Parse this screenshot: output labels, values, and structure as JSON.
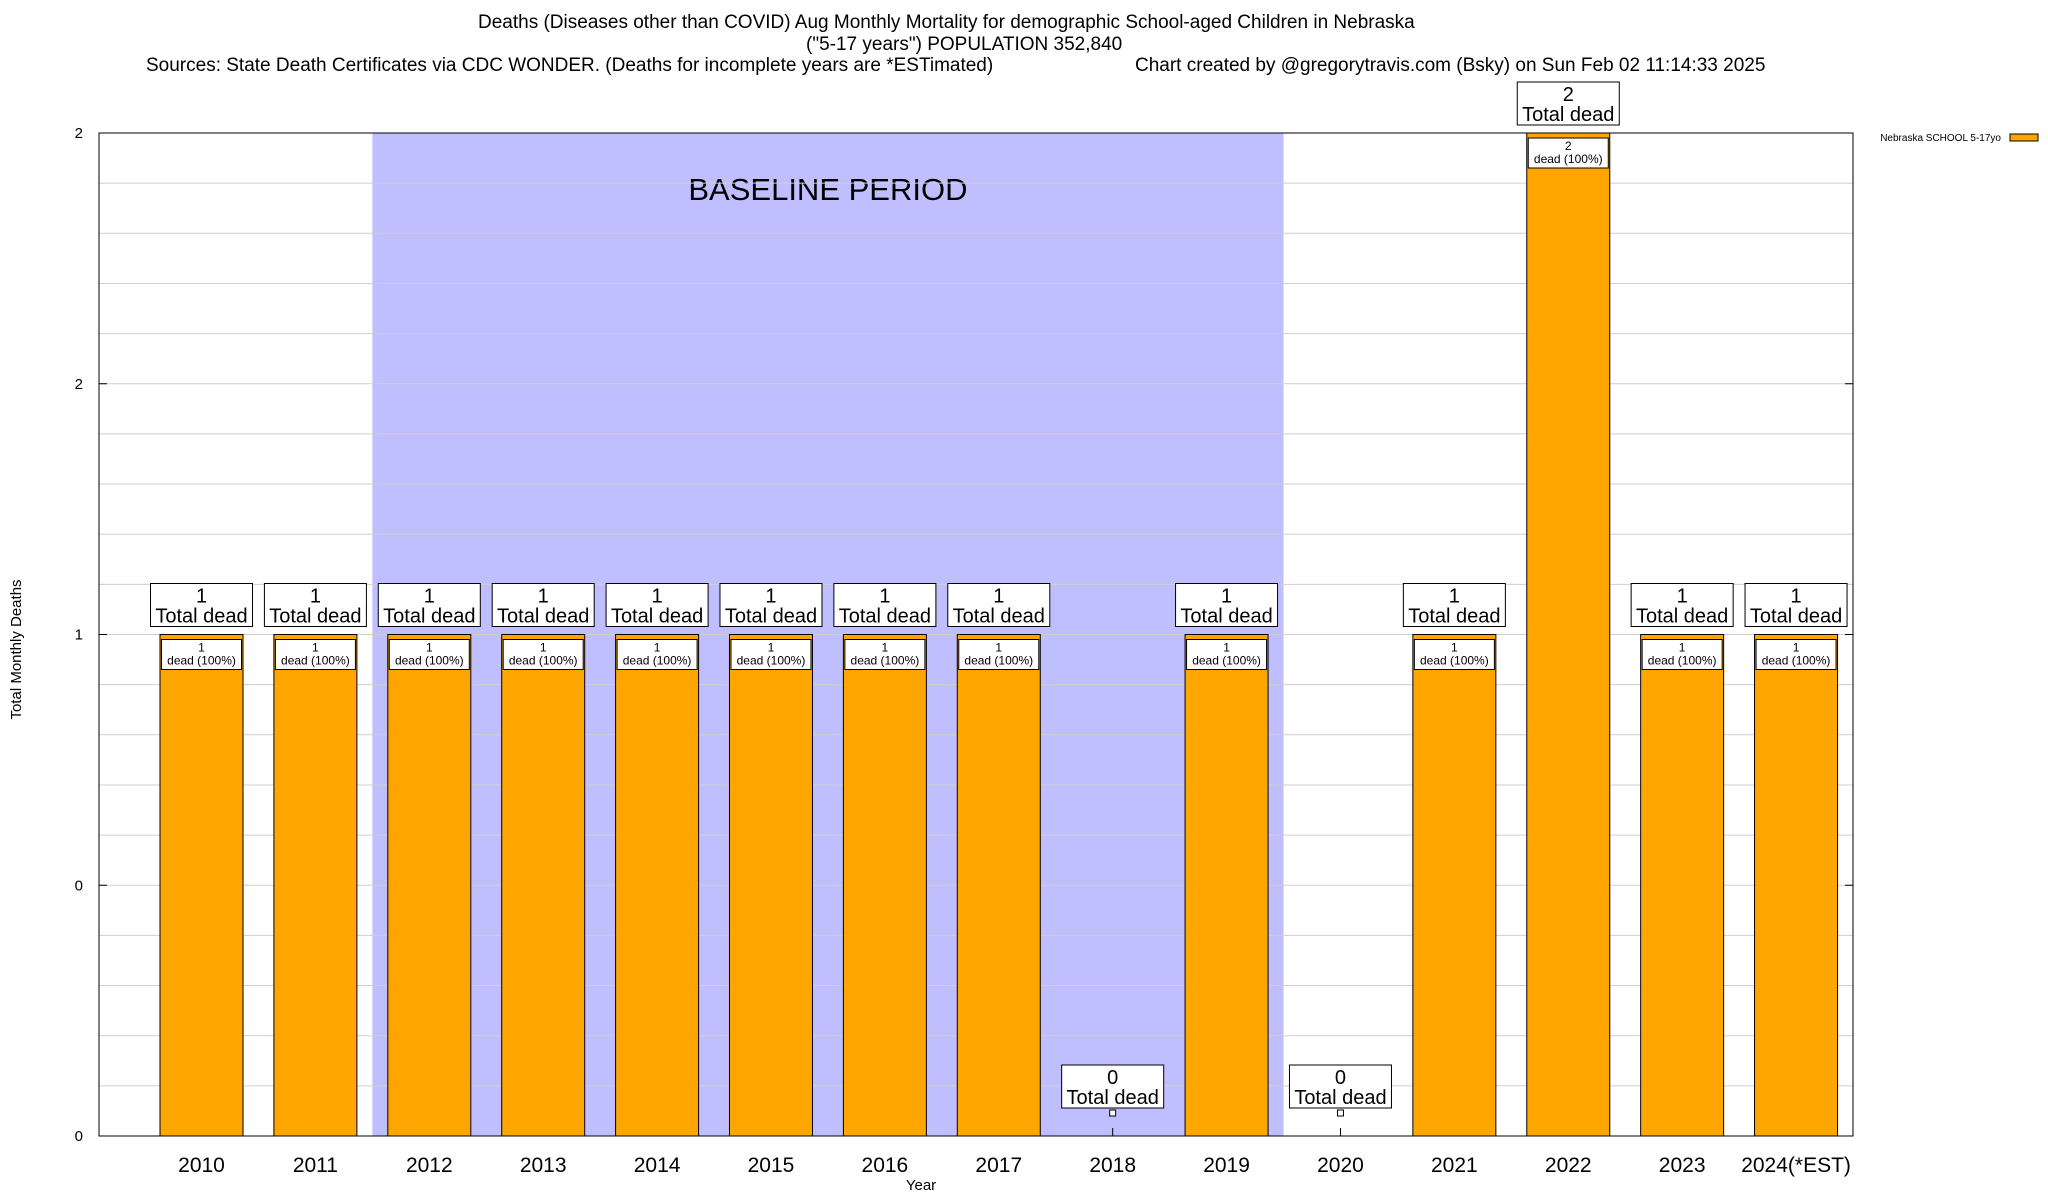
{
  "header": {
    "title_line1": "Deaths (Diseases other than COVID) Aug Monthly Mortality for demographic School-aged Children in Nebraska",
    "title_line2": "(\"5-17 years\") POPULATION 352,840",
    "sources": "Sources: State Death Certificates via CDC WONDER. (Deaths for incomplete years are *ESTimated)",
    "credit": "Chart created by @gregorytravis.com (Bsky) on Sun Feb 02 11:14:33 2025"
  },
  "chart_data": {
    "type": "bar",
    "xlabel": "Year",
    "ylabel": "Total Monthly Deaths",
    "ylim": [
      0,
      2
    ],
    "ytick_labels": [
      "0",
      "0",
      "1",
      "2",
      "2"
    ],
    "categories": [
      "2010",
      "2011",
      "2012",
      "2013",
      "2014",
      "2015",
      "2016",
      "2017",
      "2018",
      "2019",
      "2020",
      "2021",
      "2022",
      "2023",
      "2024(*EST)"
    ],
    "series": [
      {
        "name": "Nebraska SCHOOL 5-17yo",
        "color": "#FFA500",
        "values": [
          1,
          1,
          1,
          1,
          1,
          1,
          1,
          1,
          0,
          1,
          0,
          1,
          2,
          1,
          1
        ]
      }
    ],
    "total_label_suffix": "Total dead",
    "segment_label_suffix": "dead (100%)",
    "baseline": {
      "label": "BASELINE PERIOD",
      "start": "2012",
      "end": "2019",
      "color": "#BFBFFF"
    },
    "grid": true,
    "legend_position": "top-right"
  }
}
